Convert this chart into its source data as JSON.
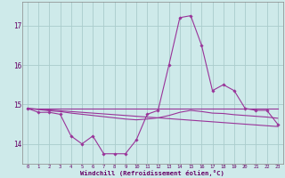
{
  "xlabel": "Windchill (Refroidissement éolien,°C)",
  "background_color": "#ceeaea",
  "grid_color": "#aacccc",
  "line_color": "#993399",
  "x": [
    0,
    1,
    2,
    3,
    4,
    5,
    6,
    7,
    8,
    9,
    10,
    11,
    12,
    13,
    14,
    15,
    16,
    17,
    18,
    19,
    20,
    21,
    22,
    23
  ],
  "line_main": [
    14.9,
    14.8,
    14.8,
    14.75,
    14.2,
    14.0,
    14.2,
    13.75,
    13.75,
    13.75,
    14.1,
    14.75,
    14.85,
    16.0,
    17.2,
    17.25,
    16.5,
    15.35,
    15.5,
    15.35,
    14.9,
    14.85,
    14.85,
    14.5
  ],
  "line_flat": [
    14.9,
    14.9,
    14.9,
    14.9,
    14.9,
    14.9,
    14.9,
    14.9,
    14.9,
    14.9,
    14.9,
    14.9,
    14.9,
    14.9,
    14.9,
    14.9,
    14.9,
    14.9,
    14.9,
    14.9,
    14.9,
    14.9,
    14.9,
    14.9
  ],
  "line_slope1": [
    14.9,
    14.88,
    14.86,
    14.84,
    14.82,
    14.8,
    14.78,
    14.76,
    14.74,
    14.72,
    14.7,
    14.68,
    14.66,
    14.64,
    14.62,
    14.6,
    14.58,
    14.56,
    14.54,
    14.52,
    14.5,
    14.48,
    14.46,
    14.44
  ],
  "line_slope2": [
    14.9,
    14.87,
    14.84,
    14.82,
    14.78,
    14.75,
    14.72,
    14.69,
    14.66,
    14.63,
    14.61,
    14.63,
    14.66,
    14.72,
    14.8,
    14.85,
    14.82,
    14.78,
    14.77,
    14.74,
    14.72,
    14.7,
    14.68,
    14.65
  ],
  "ylim": [
    13.5,
    17.6
  ],
  "yticks": [
    14,
    15,
    16,
    17
  ],
  "xlim": [
    -0.5,
    23.5
  ],
  "xtick_labels": [
    "0",
    "1",
    "2",
    "3",
    "4",
    "5",
    "6",
    "7",
    "8",
    "9",
    "10",
    "11",
    "12",
    "13",
    "14",
    "15",
    "16",
    "17",
    "18",
    "19",
    "20",
    "21",
    "22",
    "23"
  ]
}
